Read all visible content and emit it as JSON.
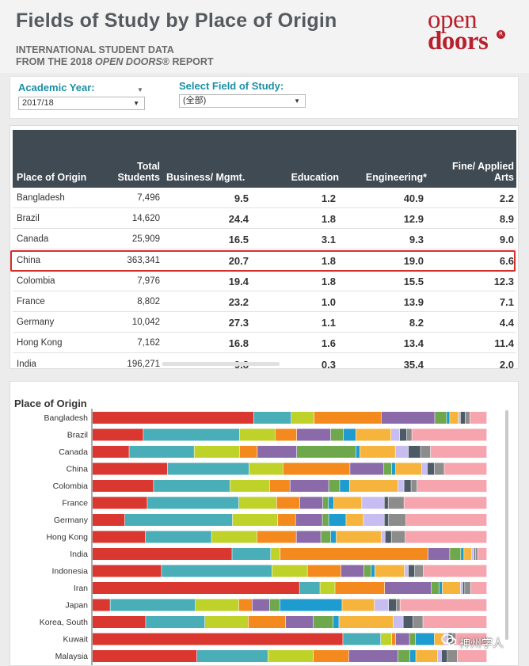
{
  "header": {
    "title": "Fields of Study by Place of Origin",
    "subtitle_line1": "INTERNATIONAL STUDENT DATA",
    "subtitle_line2_prefix": "FROM THE 2018 ",
    "subtitle_line2_em": "OPEN DOORS",
    "subtitle_line2_suffix": "® REPORT",
    "logo_line1": "open",
    "logo_line2": "doors",
    "logo_reg": "R"
  },
  "filters": {
    "academic_year_label": "Academic Year:",
    "academic_year_value": "2017/18",
    "field_label": "Select Field of Study:",
    "field_value": "(全部)"
  },
  "table": {
    "headers": {
      "place": "Place of Origin",
      "total_line1": "Total",
      "total_line2": "Students",
      "business": "Business/ Mgmt.",
      "education": "Education",
      "engineering": "Engineering*",
      "fine_line1": "Fine/ Applied",
      "fine_line2": "Arts"
    },
    "rows": [
      {
        "place": "Bangladesh",
        "total": "7,496",
        "business": "9.5",
        "education": "1.2",
        "engineering": "40.9",
        "fine": "2.2"
      },
      {
        "place": "Brazil",
        "total": "14,620",
        "business": "24.4",
        "education": "1.8",
        "engineering": "12.9",
        "fine": "8.9"
      },
      {
        "place": "Canada",
        "total": "25,909",
        "business": "16.5",
        "education": "3.1",
        "engineering": "9.3",
        "fine": "9.0"
      },
      {
        "place": "China",
        "total": "363,341",
        "business": "20.7",
        "education": "1.8",
        "engineering": "19.0",
        "fine": "6.6"
      },
      {
        "place": "Colombia",
        "total": "7,976",
        "business": "19.4",
        "education": "1.8",
        "engineering": "15.5",
        "fine": "12.3"
      },
      {
        "place": "France",
        "total": "8,802",
        "business": "23.2",
        "education": "1.0",
        "engineering": "13.9",
        "fine": "7.1"
      },
      {
        "place": "Germany",
        "total": "10,042",
        "business": "27.3",
        "education": "1.1",
        "engineering": "8.2",
        "fine": "4.4"
      },
      {
        "place": "Hong Kong",
        "total": "7,162",
        "business": "16.8",
        "education": "1.6",
        "engineering": "13.4",
        "fine": "11.4"
      },
      {
        "place": "India",
        "total": "196,271",
        "business": "9.8",
        "education": "0.3",
        "engineering": "35.4",
        "fine": "2.0"
      }
    ]
  },
  "chart_data": {
    "type": "bar",
    "orientation": "horizontal-stacked-100",
    "title": "Place of Origin",
    "colors": [
      "#d9372f",
      "#4aaeb9",
      "#bfd22a",
      "#f48a1e",
      "#8a6aa9",
      "#6fa84c",
      "#1e9ccf",
      "#f7b43c",
      "#c8bdf0",
      "#4e5a66",
      "#8c8c8c",
      "#f6a4ad"
    ],
    "categories": [
      "Bangladesh",
      "Brazil",
      "Canada",
      "China",
      "Colombia",
      "France",
      "Germany",
      "Hong Kong",
      "India",
      "Indonesia",
      "Iran",
      "Japan",
      "Korea, South",
      "Kuwait",
      "Malaysia"
    ],
    "rows": [
      [
        40.9,
        9.5,
        5.8,
        17.0,
        13.6,
        3.0,
        0.8,
        2.2,
        0.5,
        1.2,
        1.2,
        4.3
      ],
      [
        12.9,
        24.4,
        9.0,
        5.5,
        8.6,
        3.2,
        3.2,
        8.9,
        2.2,
        1.8,
        1.3,
        19.0
      ],
      [
        9.3,
        16.5,
        11.5,
        4.5,
        10.0,
        15.0,
        1.0,
        9.0,
        3.3,
        3.1,
        2.5,
        14.3
      ],
      [
        19.0,
        20.7,
        8.6,
        17.0,
        8.6,
        2.0,
        1.0,
        6.6,
        1.4,
        1.8,
        2.5,
        10.8
      ],
      [
        15.5,
        19.4,
        10.0,
        5.2,
        9.8,
        2.8,
        2.5,
        12.3,
        1.5,
        1.8,
        1.5,
        17.7
      ],
      [
        13.9,
        23.2,
        9.6,
        5.9,
        5.8,
        1.4,
        1.4,
        7.1,
        5.7,
        1.0,
        4.0,
        21.0
      ],
      [
        8.2,
        27.3,
        11.5,
        4.5,
        6.8,
        1.6,
        4.4,
        4.4,
        5.3,
        1.1,
        4.4,
        20.5
      ],
      [
        13.4,
        16.8,
        11.5,
        10.0,
        6.2,
        2.5,
        1.4,
        11.4,
        1.0,
        1.6,
        3.5,
        20.7
      ],
      [
        35.4,
        9.8,
        2.4,
        37.5,
        5.5,
        2.8,
        0.8,
        2.0,
        0.6,
        0.3,
        0.6,
        2.3
      ],
      [
        17.5,
        28.0,
        9.0,
        8.5,
        5.8,
        1.8,
        1.0,
        7.5,
        1.0,
        1.6,
        2.2,
        16.1
      ],
      [
        52.5,
        5.2,
        3.8,
        12.6,
        11.8,
        2.0,
        0.8,
        4.6,
        0.6,
        0.5,
        1.5,
        4.1
      ],
      [
        4.5,
        21.6,
        11.0,
        3.4,
        4.4,
        2.6,
        15.8,
        8.2,
        3.6,
        2.0,
        0.9,
        22.0
      ],
      [
        13.5,
        15.0,
        11.0,
        9.5,
        7.0,
        5.0,
        1.5,
        13.8,
        2.5,
        2.5,
        2.5,
        16.2
      ],
      [
        63.5,
        9.6,
        2.8,
        1.0,
        3.5,
        1.5,
        4.8,
        2.5,
        1.0,
        1.0,
        1.0,
        7.8
      ],
      [
        26.5,
        18.0,
        11.5,
        9.0,
        12.5,
        3.0,
        1.5,
        5.5,
        1.0,
        1.5,
        2.5,
        7.5
      ]
    ]
  },
  "watermark": {
    "text": "神州学人"
  }
}
